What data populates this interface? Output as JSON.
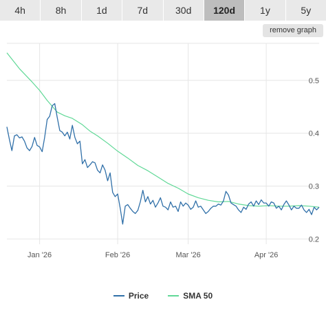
{
  "tabs": [
    {
      "label": "4h",
      "active": false
    },
    {
      "label": "8h",
      "active": false
    },
    {
      "label": "1d",
      "active": false
    },
    {
      "label": "7d",
      "active": false
    },
    {
      "label": "30d",
      "active": false
    },
    {
      "label": "120d",
      "active": true
    },
    {
      "label": "1y",
      "active": false
    },
    {
      "label": "5y",
      "active": false
    }
  ],
  "remove_graph_label": "remove graph",
  "legend": [
    {
      "label": "Price",
      "color": "#2f6fa8"
    },
    {
      "label": "SMA 50",
      "color": "#5fd896"
    }
  ],
  "chart_data": {
    "type": "line",
    "ylim": [
      0.19,
      0.57
    ],
    "yticks": [
      {
        "value": 0.2,
        "label": "0.2"
      },
      {
        "value": 0.3,
        "label": "0.3"
      },
      {
        "value": 0.4,
        "label": "0.4"
      },
      {
        "value": 0.5,
        "label": "0.5"
      }
    ],
    "xticks": [
      {
        "day": 13,
        "label": "Jan '26"
      },
      {
        "day": 44,
        "label": "Feb '26"
      },
      {
        "day": 72,
        "label": "Mar '26"
      },
      {
        "day": 103,
        "label": "Apr '26"
      }
    ],
    "xlim": [
      0,
      124
    ],
    "series": [
      {
        "name": "Price",
        "color": "#2f6fa8",
        "x": [
          0,
          1,
          2,
          3,
          4,
          5,
          6,
          7,
          8,
          9,
          10,
          11,
          12,
          13,
          14,
          15,
          16,
          17,
          18,
          19,
          20,
          21,
          22,
          23,
          24,
          25,
          26,
          27,
          28,
          29,
          30,
          31,
          32,
          33,
          34,
          35,
          36,
          37,
          38,
          39,
          40,
          41,
          42,
          43,
          44,
          45,
          46,
          47,
          48,
          49,
          50,
          51,
          52,
          53,
          54,
          55,
          56,
          57,
          58,
          59,
          60,
          61,
          62,
          63,
          64,
          65,
          66,
          67,
          68,
          69,
          70,
          71,
          72,
          73,
          74,
          75,
          76,
          77,
          78,
          79,
          80,
          81,
          82,
          83,
          84,
          85,
          86,
          87,
          88,
          89,
          90,
          91,
          92,
          93,
          94,
          95,
          96,
          97,
          98,
          99,
          100,
          101,
          102,
          103,
          104,
          105,
          106,
          107,
          108,
          109,
          110,
          111,
          112,
          113,
          114,
          115,
          116,
          117,
          118,
          119,
          120,
          121,
          122,
          123,
          124
        ],
        "y": [
          0.412,
          0.388,
          0.367,
          0.395,
          0.397,
          0.391,
          0.393,
          0.385,
          0.372,
          0.367,
          0.375,
          0.392,
          0.377,
          0.374,
          0.365,
          0.392,
          0.426,
          0.432,
          0.452,
          0.456,
          0.43,
          0.405,
          0.402,
          0.395,
          0.402,
          0.389,
          0.415,
          0.392,
          0.38,
          0.385,
          0.342,
          0.35,
          0.335,
          0.34,
          0.346,
          0.344,
          0.33,
          0.325,
          0.34,
          0.33,
          0.31,
          0.325,
          0.288,
          0.28,
          0.285,
          0.258,
          0.228,
          0.262,
          0.265,
          0.258,
          0.252,
          0.248,
          0.254,
          0.27,
          0.292,
          0.27,
          0.28,
          0.266,
          0.273,
          0.26,
          0.268,
          0.278,
          0.262,
          0.26,
          0.255,
          0.27,
          0.26,
          0.262,
          0.252,
          0.27,
          0.262,
          0.268,
          0.264,
          0.256,
          0.26,
          0.272,
          0.26,
          0.262,
          0.255,
          0.248,
          0.252,
          0.258,
          0.262,
          0.262,
          0.266,
          0.264,
          0.272,
          0.29,
          0.283,
          0.268,
          0.265,
          0.262,
          0.255,
          0.25,
          0.26,
          0.256,
          0.266,
          0.27,
          0.262,
          0.272,
          0.265,
          0.274,
          0.268,
          0.268,
          0.262,
          0.27,
          0.268,
          0.258,
          0.262,
          0.255,
          0.265,
          0.272,
          0.264,
          0.255,
          0.262,
          0.258,
          0.258,
          0.264,
          0.255,
          0.25,
          0.256,
          0.246,
          0.26,
          0.255,
          0.26
        ]
      },
      {
        "name": "SMA 50",
        "color": "#5fd896",
        "x": [
          0,
          5,
          10,
          13,
          16,
          20,
          23,
          26,
          30,
          33,
          36,
          40,
          44,
          48,
          52,
          56,
          60,
          64,
          68,
          72,
          76,
          80,
          84,
          88,
          92,
          96,
          100,
          104,
          108,
          112,
          116,
          120,
          124
        ],
        "y": [
          0.552,
          0.522,
          0.497,
          0.481,
          0.462,
          0.44,
          0.433,
          0.428,
          0.416,
          0.404,
          0.395,
          0.381,
          0.366,
          0.353,
          0.339,
          0.329,
          0.317,
          0.305,
          0.296,
          0.285,
          0.278,
          0.273,
          0.27,
          0.271,
          0.266,
          0.263,
          0.262,
          0.263,
          0.262,
          0.262,
          0.263,
          0.262,
          0.26
        ]
      }
    ]
  }
}
